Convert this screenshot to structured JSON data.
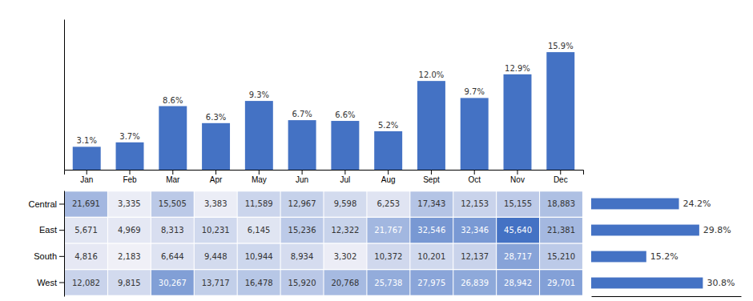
{
  "chart_data": [
    {
      "type": "bar",
      "categories": [
        "Jan",
        "Feb",
        "Mar",
        "Apr",
        "May",
        "Jun",
        "Jul",
        "Aug",
        "Sept",
        "Oct",
        "Nov",
        "Dec"
      ],
      "values": [
        3.1,
        3.7,
        8.6,
        6.3,
        9.3,
        6.7,
        6.6,
        5.2,
        12.0,
        9.7,
        12.9,
        15.9
      ],
      "value_labels": [
        "3.1%",
        "3.7%",
        "8.6%",
        "6.3%",
        "9.3%",
        "6.7%",
        "6.6%",
        "5.2%",
        "12.0%",
        "9.7%",
        "12.9%",
        "15.9%"
      ],
      "color": "#4472C4",
      "ylim": [
        0,
        20.352
      ],
      "data_labels": true,
      "tick_labels": "x"
    },
    {
      "type": "heatmap",
      "categories": [
        null,
        null,
        null,
        null,
        null,
        null,
        null,
        null,
        null,
        null,
        null,
        null
      ],
      "series": [
        {
          "name": "Central",
          "values": [
            21691,
            3335,
            15505,
            3383,
            11589,
            12967,
            9598,
            6253,
            17343,
            12153,
            15155,
            18883
          ],
          "value_labels": [
            "21,691",
            "3,335",
            "15,505",
            "3,383",
            "11,589",
            "12,967",
            "9,598",
            "6,253",
            "17,343",
            "12,153",
            "15,155",
            "18,883"
          ]
        },
        {
          "name": "East",
          "values": [
            5671,
            4969,
            8313,
            10231,
            6145,
            15236,
            12322,
            21767,
            32546,
            32346,
            45640,
            21381
          ],
          "value_labels": [
            "5,671",
            "4,969",
            "8,313",
            "10,231",
            "6,145",
            "15,236",
            "12,322",
            "21,767",
            "32,546",
            "32,346",
            "45,640",
            "21,381"
          ]
        },
        {
          "name": "South",
          "values": [
            4816,
            2183,
            6644,
            9448,
            10944,
            8934,
            3302,
            10372,
            10201,
            12137,
            28717,
            15210
          ],
          "value_labels": [
            "4,816",
            "2,183",
            "6,644",
            "9,448",
            "10,944",
            "8,934",
            "3,302",
            "10,372",
            "10,201",
            "12,137",
            "28,717",
            "15,210"
          ]
        },
        {
          "name": "West",
          "values": [
            12082,
            9815,
            30267,
            13717,
            16478,
            15920,
            20768,
            25738,
            27975,
            26839,
            28942,
            29701
          ],
          "value_labels": [
            "12,082",
            "9,815",
            "30,267",
            "13,717",
            "16,478",
            "15,920",
            "20,768",
            "25,738",
            "27,975",
            "26,839",
            "28,942",
            "29,701"
          ]
        }
      ],
      "color_range": [
        2183,
        45640
      ],
      "color_scale": [
        "#f0f0f7",
        "#4472c4"
      ],
      "data_labels": true,
      "tick_labels": "y"
    },
    {
      "type": "bar",
      "orientation": "horizontal",
      "categories": [
        null,
        null,
        null,
        null
      ],
      "values": [
        24.2,
        29.8,
        15.2,
        30.8
      ],
      "value_labels": [
        "24.2%",
        "29.8%",
        "15.2%",
        "30.8%"
      ],
      "color": "#4472C4",
      "xlim": [
        0,
        41.31707317073171
      ],
      "data_labels": true,
      "tick_labels": false
    }
  ]
}
